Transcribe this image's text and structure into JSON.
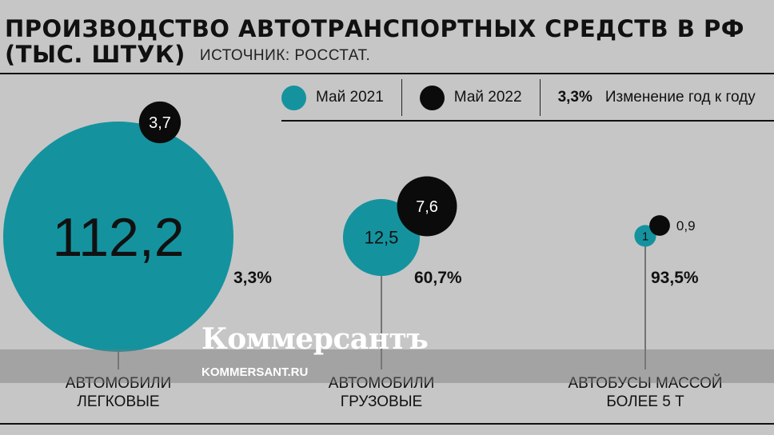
{
  "header": {
    "title_line1": "ПРОИЗВОДСТВО АВТОТРАНСПОРТНЫХ СРЕДСТВ В РФ",
    "title_line2": "(ТЫС. ШТУК)",
    "source": "ИСТОЧНИК: РОССТАТ."
  },
  "legend": {
    "may2021": "Май 2021",
    "may2022": "Май 2022",
    "change_value": "3,3%",
    "change_label": "Изменение год к году"
  },
  "colors": {
    "may2021": "#14939f",
    "may2022": "#0b0b0b",
    "background": "#c6c6c6"
  },
  "watermark": {
    "brand": "Коммерсантъ",
    "url": "KOMMERSANT.RU"
  },
  "chart_data": {
    "type": "bubble",
    "categories": [
      [
        "АВТОМОБИЛИ",
        "ЛЕГКОВЫЕ"
      ],
      [
        "АВТОМОБИЛИ",
        "ГРУЗОВЫЕ"
      ],
      [
        "АВТОБУСЫ МАССОЙ",
        "БОЛЕЕ 5 Т"
      ]
    ],
    "series": [
      {
        "name": "Май 2021",
        "values": [
          112.2,
          12.5,
          1
        ],
        "labels": [
          "112,2",
          "12,5",
          "1"
        ]
      },
      {
        "name": "Май 2022",
        "values": [
          3.7,
          7.6,
          0.9
        ],
        "labels": [
          "3,7",
          "7,6",
          "0,9"
        ]
      }
    ],
    "change": [
      "3,3%",
      "60,7%",
      "93,5%"
    ]
  }
}
